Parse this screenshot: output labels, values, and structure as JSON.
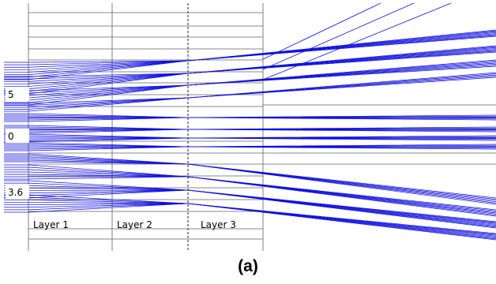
{
  "figure": {
    "caption": "(a)",
    "layers": [
      {
        "label": "Layer 1"
      },
      {
        "label": "Layer 2"
      },
      {
        "label": "Layer 3"
      }
    ],
    "source_groups": [
      {
        "label": "5"
      },
      {
        "label": "0"
      },
      {
        "label": "3.6"
      }
    ],
    "colors": {
      "ray": "#1010e0",
      "guide_line": "#606060",
      "background": "#ffffff",
      "text": "#000000"
    }
  }
}
